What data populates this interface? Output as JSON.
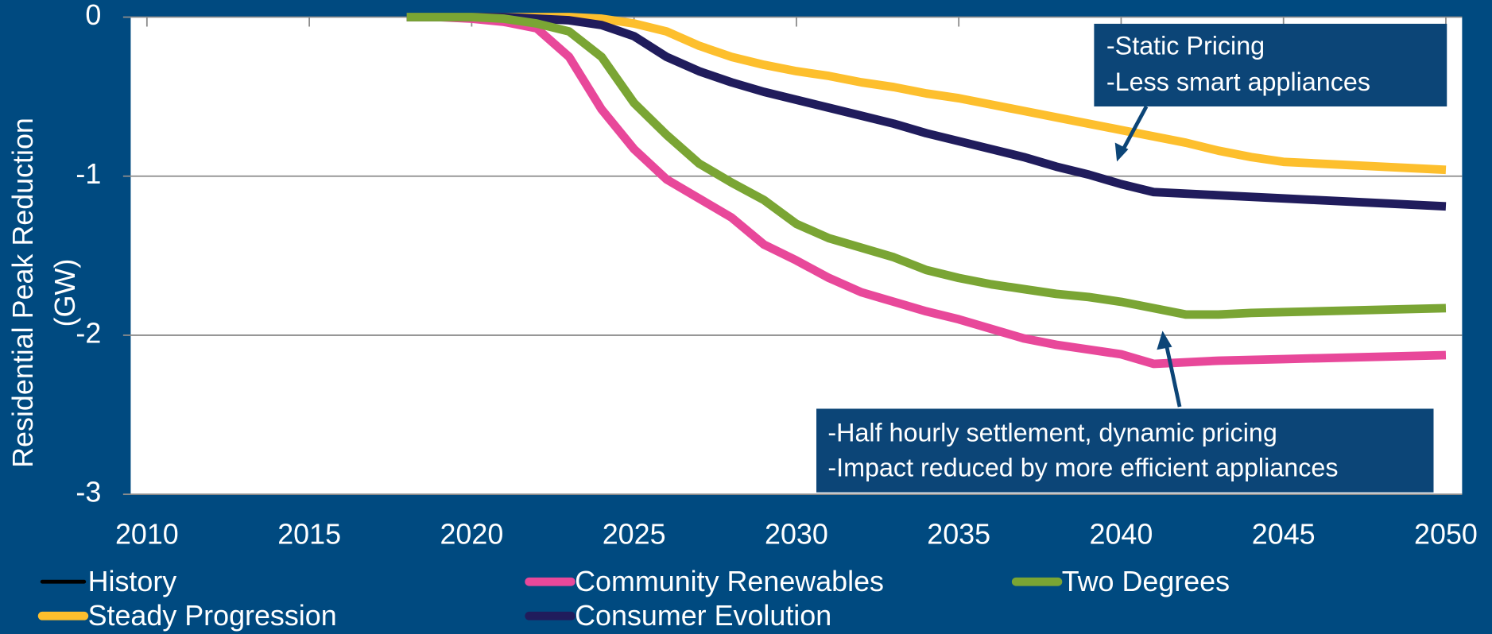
{
  "chart_data": {
    "type": "line",
    "y_label": [
      "Residential Peak Reduction",
      "(GW)"
    ],
    "x": [
      2018,
      2019,
      2020,
      2021,
      2022,
      2023,
      2024,
      2025,
      2026,
      2027,
      2028,
      2029,
      2030,
      2031,
      2032,
      2033,
      2034,
      2035,
      2036,
      2037,
      2038,
      2039,
      2040,
      2041,
      2042,
      2043,
      2044,
      2045,
      2046,
      2047,
      2048,
      2049,
      2050
    ],
    "xlim": [
      2009.5,
      2050.5
    ],
    "xticks": [
      2010,
      2015,
      2020,
      2025,
      2030,
      2035,
      2040,
      2045,
      2050
    ],
    "ylim": [
      -3,
      0
    ],
    "yticks": [
      -3,
      -2,
      -1,
      0
    ],
    "grid": true,
    "legend": "bottom",
    "series": [
      {
        "name": "History",
        "color": "#000000",
        "values": [
          null,
          null,
          null,
          null,
          null,
          null,
          null,
          null,
          null,
          null,
          null,
          null,
          null,
          null,
          null,
          null,
          null,
          null,
          null,
          null,
          null,
          null,
          null,
          null,
          null,
          null,
          null,
          null,
          null,
          null,
          null,
          null,
          null
        ]
      },
      {
        "name": "Steady Progression",
        "color": "#fdbf2d",
        "values": [
          0,
          0,
          0,
          0,
          0,
          0,
          -0.01,
          -0.04,
          -0.09,
          -0.18,
          -0.25,
          -0.3,
          -0.34,
          -0.37,
          -0.41,
          -0.44,
          -0.48,
          -0.51,
          -0.55,
          -0.59,
          -0.63,
          -0.67,
          -0.71,
          -0.75,
          -0.79,
          -0.84,
          -0.88,
          -0.91,
          -0.92,
          -0.93,
          -0.94,
          -0.95,
          -0.96
        ]
      },
      {
        "name": "Community Renewables",
        "color": "#e8489a",
        "values": [
          0,
          0,
          -0.01,
          -0.03,
          -0.07,
          -0.25,
          -0.58,
          -0.83,
          -1.02,
          -1.14,
          -1.26,
          -1.43,
          -1.53,
          -1.64,
          -1.73,
          -1.79,
          -1.85,
          -1.9,
          -1.96,
          -2.02,
          -2.06,
          -2.09,
          -2.12,
          -2.18,
          -2.17,
          -2.16,
          -2.155,
          -2.15,
          -2.145,
          -2.14,
          -2.135,
          -2.13,
          -2.125
        ]
      },
      {
        "name": "Consumer Evolution",
        "color": "#201c5c",
        "values": [
          0,
          0,
          0,
          0,
          -0.01,
          -0.02,
          -0.05,
          -0.12,
          -0.25,
          -0.34,
          -0.41,
          -0.47,
          -0.52,
          -0.57,
          -0.62,
          -0.67,
          -0.73,
          -0.78,
          -0.83,
          -0.88,
          -0.94,
          -0.99,
          -1.05,
          -1.1,
          -1.11,
          -1.12,
          -1.13,
          -1.14,
          -1.15,
          -1.16,
          -1.17,
          -1.18,
          -1.19
        ]
      },
      {
        "name": "Two Degrees",
        "color": "#7aa534",
        "values": [
          0,
          0,
          0,
          -0.01,
          -0.04,
          -0.09,
          -0.25,
          -0.54,
          -0.74,
          -0.92,
          -1.04,
          -1.15,
          -1.3,
          -1.39,
          -1.45,
          -1.51,
          -1.59,
          -1.64,
          -1.68,
          -1.71,
          -1.74,
          -1.76,
          -1.79,
          -1.83,
          -1.87,
          -1.87,
          -1.86,
          -1.855,
          -1.85,
          -1.845,
          -1.84,
          -1.835,
          -1.83
        ]
      }
    ],
    "annotations": [
      [
        "-Static Pricing",
        "-Less smart appliances"
      ],
      [
        "-Half hourly settlement, dynamic pricing",
        "-Impact reduced by more efficient appliances"
      ]
    ]
  }
}
